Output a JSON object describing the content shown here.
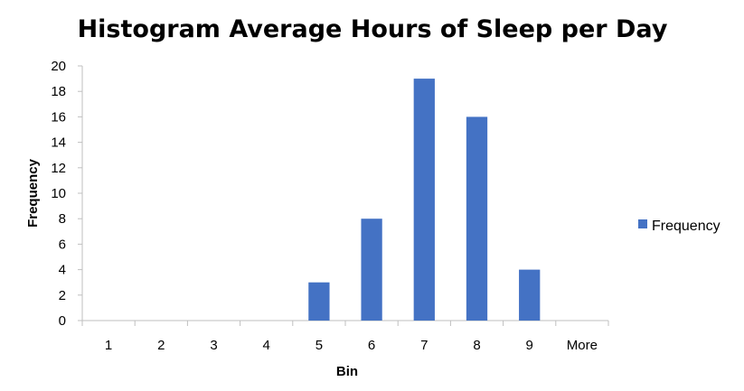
{
  "chart_data": {
    "type": "bar",
    "title": "Histogram Average Hours of Sleep per Day",
    "xlabel": "Bin",
    "ylabel": "Frequency",
    "categories": [
      "1",
      "2",
      "3",
      "4",
      "5",
      "6",
      "7",
      "8",
      "9",
      "More"
    ],
    "series": [
      {
        "name": "Frequency",
        "values": [
          0,
          0,
          0,
          0,
          3,
          8,
          19,
          16,
          4,
          0
        ],
        "color": "#4472C4"
      }
    ],
    "ylim": [
      0,
      20
    ],
    "yticks": [
      "0",
      "2",
      "4",
      "6",
      "8",
      "10",
      "12",
      "14",
      "16",
      "18",
      "20"
    ],
    "grid": false,
    "legend_position": "right"
  }
}
